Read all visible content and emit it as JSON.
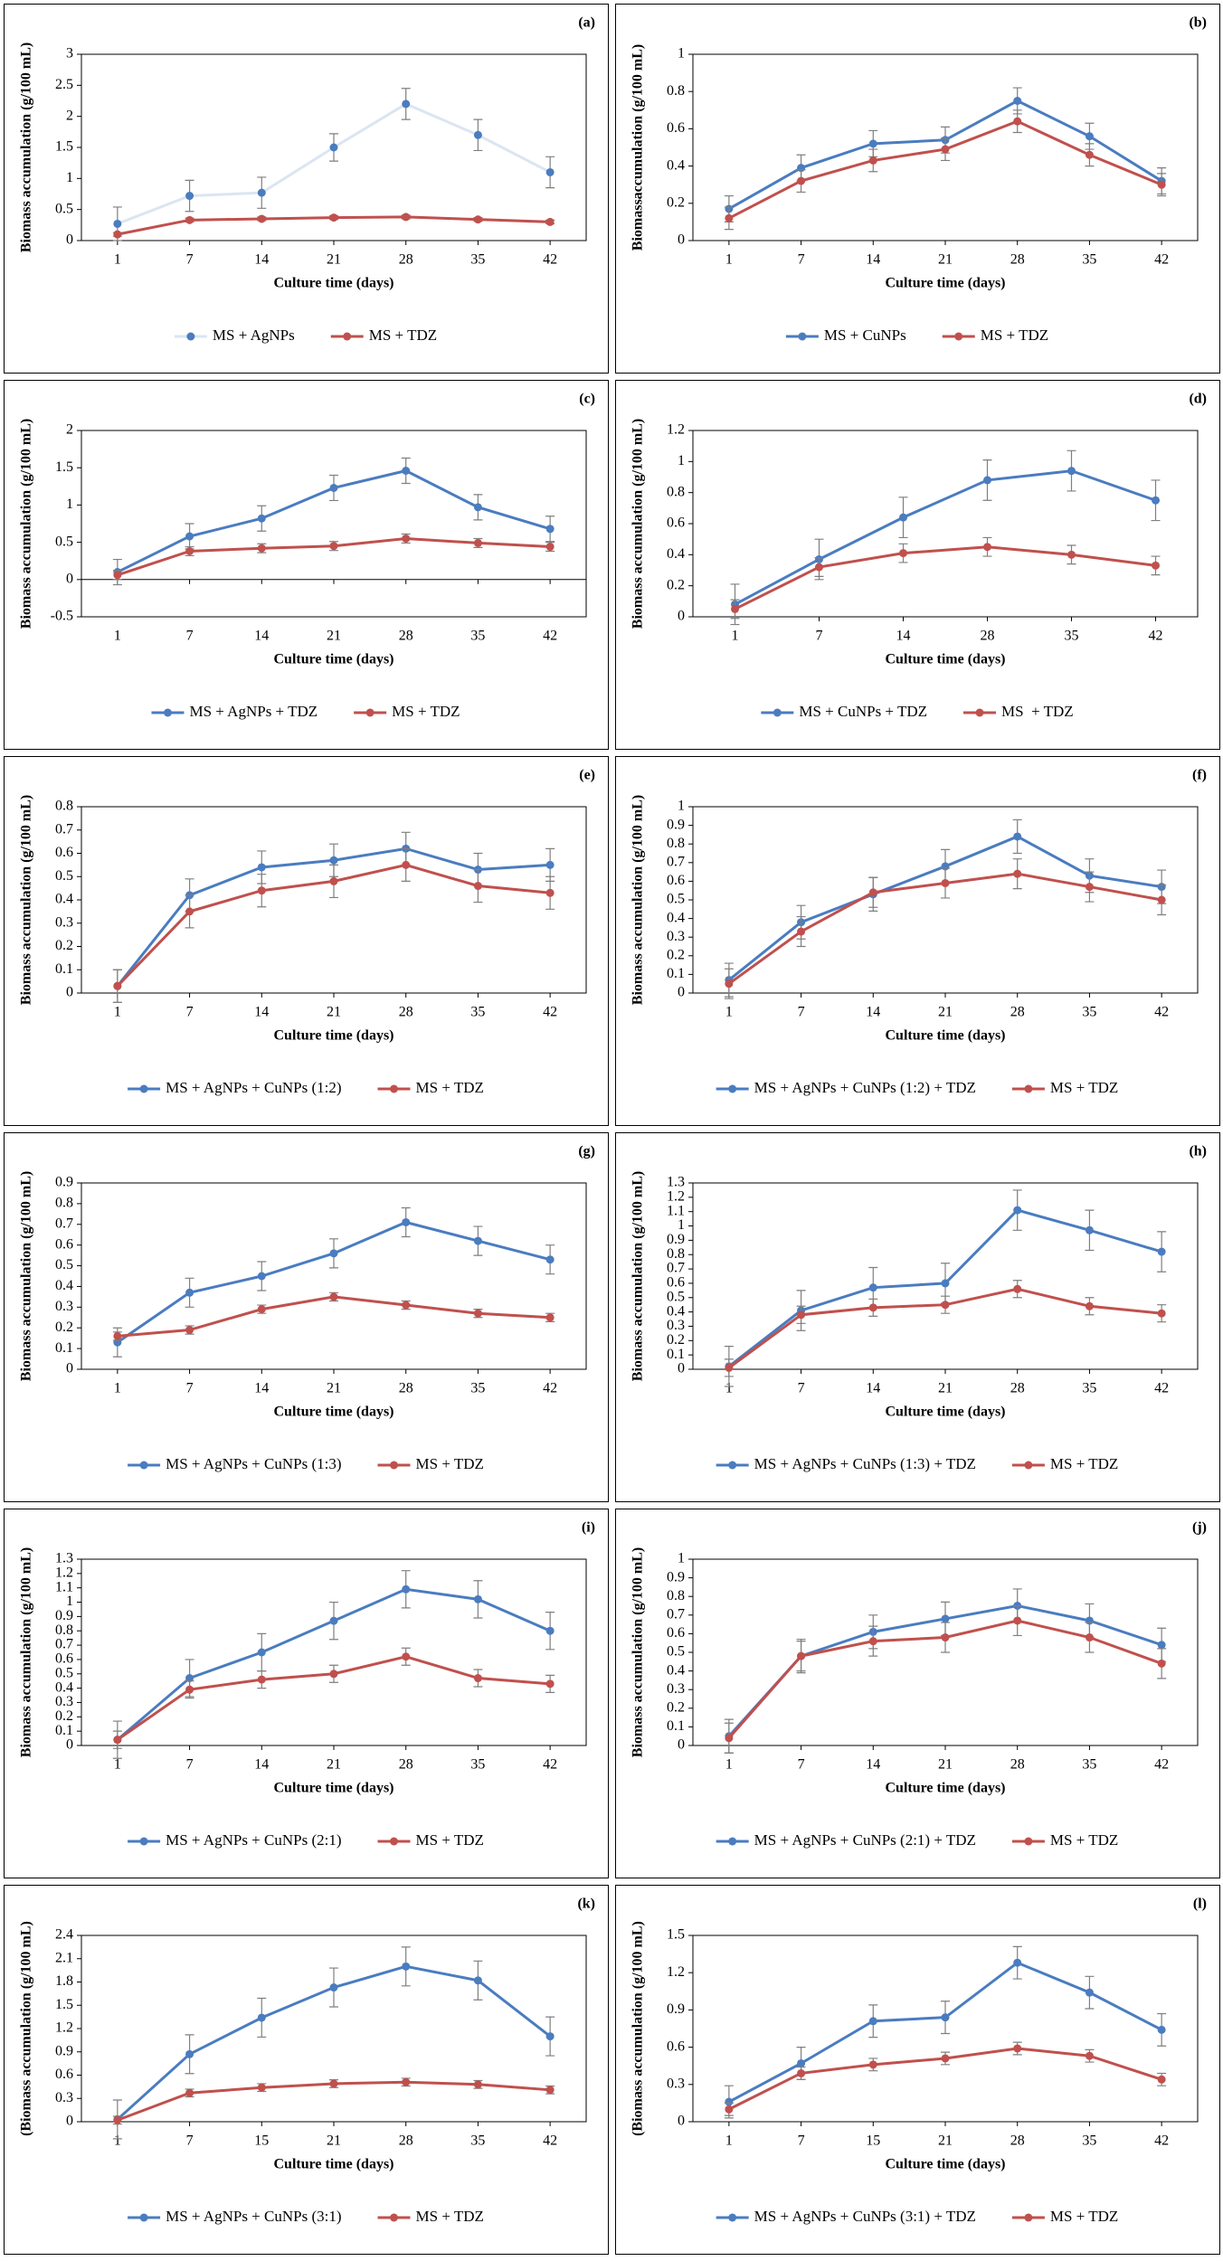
{
  "chart_data": [
    {
      "type": "line",
      "panel": "(a)",
      "x_label": "Culture time (days)",
      "y_label": "Biomass accumulation (g/100 mL)",
      "categories": [
        "1",
        "7",
        "14",
        "21",
        "28",
        "35",
        "42"
      ],
      "ylim": [
        0,
        3
      ],
      "yticks": [
        0,
        0.5,
        1,
        1.5,
        2,
        2.5,
        3
      ],
      "series": [
        {
          "name": "MS + AgNPs",
          "color": "#4a7cc0",
          "line_opacity": 0.2,
          "values": [
            0.27,
            0.72,
            0.77,
            1.5,
            2.2,
            1.7,
            1.1
          ],
          "errors": [
            0.27,
            0.25,
            0.25,
            0.22,
            0.25,
            0.25,
            0.25
          ]
        },
        {
          "name": "MS + TDZ",
          "color": "#c0504d",
          "values": [
            0.1,
            0.33,
            0.35,
            0.37,
            0.38,
            0.34,
            0.3
          ],
          "errors": [
            0.03,
            0.03,
            0.03,
            0.03,
            0.03,
            0.03,
            0.03
          ]
        }
      ]
    },
    {
      "type": "line",
      "panel": "(b)",
      "x_label": "Culture time (days)",
      "y_label": "Biomassaccumulation (g/100 mL)",
      "categories": [
        "1",
        "7",
        "14",
        "21",
        "28",
        "35",
        "42"
      ],
      "ylim": [
        0,
        1
      ],
      "yticks": [
        0,
        0.2,
        0.4,
        0.6,
        0.8,
        1
      ],
      "series": [
        {
          "name": "MS + CuNPs",
          "color": "#4a7cc0",
          "values": [
            0.17,
            0.39,
            0.52,
            0.54,
            0.75,
            0.56,
            0.32
          ],
          "errors": [
            0.07,
            0.07,
            0.07,
            0.07,
            0.07,
            0.07,
            0.07
          ]
        },
        {
          "name": "MS + TDZ",
          "color": "#c0504d",
          "values": [
            0.12,
            0.32,
            0.43,
            0.49,
            0.64,
            0.46,
            0.3
          ],
          "errors": [
            0.06,
            0.06,
            0.06,
            0.06,
            0.06,
            0.06,
            0.06
          ]
        }
      ]
    },
    {
      "type": "line",
      "panel": "(c)",
      "x_label": "Culture time (days)",
      "y_label": "Biomass accumulation (g/100 mL)",
      "categories": [
        "1",
        "7",
        "14",
        "21",
        "28",
        "35",
        "42"
      ],
      "ylim": [
        -0.5,
        2
      ],
      "yticks": [
        -0.5,
        0,
        0.5,
        1,
        1.5,
        2
      ],
      "series": [
        {
          "name": "MS + AgNPs + TDZ",
          "color": "#4a7cc0",
          "values": [
            0.1,
            0.58,
            0.82,
            1.23,
            1.46,
            0.97,
            0.68
          ],
          "errors": [
            0.17,
            0.17,
            0.17,
            0.17,
            0.17,
            0.17,
            0.17
          ]
        },
        {
          "name": "MS + TDZ",
          "color": "#c0504d",
          "values": [
            0.06,
            0.38,
            0.42,
            0.45,
            0.55,
            0.49,
            0.44
          ],
          "errors": [
            0.06,
            0.06,
            0.06,
            0.06,
            0.06,
            0.06,
            0.06
          ]
        }
      ]
    },
    {
      "type": "line",
      "panel": "(d)",
      "x_label": "Culture time (days)",
      "y_label": "Biomass accumulation (g/100 mL)",
      "categories": [
        "1",
        "7",
        "14",
        "28",
        "35",
        "42"
      ],
      "ylim": [
        0,
        1.2
      ],
      "yticks": [
        0,
        0.2,
        0.4,
        0.6,
        0.8,
        1,
        1.2
      ],
      "series": [
        {
          "name": "MS + CuNPs + TDZ",
          "color": "#4a7cc0",
          "values": [
            0.08,
            0.37,
            0.64,
            0.88,
            0.94,
            0.75
          ],
          "errors": [
            0.13,
            0.13,
            0.13,
            0.13,
            0.13,
            0.13
          ]
        },
        {
          "name": "MS  + TDZ",
          "color": "#c0504d",
          "values": [
            0.05,
            0.32,
            0.41,
            0.45,
            0.4,
            0.33
          ],
          "errors": [
            0.06,
            0.06,
            0.06,
            0.06,
            0.06,
            0.06
          ]
        }
      ]
    },
    {
      "type": "line",
      "panel": "(e)",
      "x_label": "Culture time (days)",
      "y_label": "Biomass accumulation (g/100 mL)",
      "categories": [
        "1",
        "7",
        "14",
        "21",
        "28",
        "35",
        "42"
      ],
      "ylim": [
        0,
        0.8
      ],
      "yticks": [
        0,
        0.1,
        0.2,
        0.3,
        0.4,
        0.5,
        0.6,
        0.7,
        0.8
      ],
      "series": [
        {
          "name": "MS + AgNPs + CuNPs (1:2)",
          "color": "#4a7cc0",
          "values": [
            0.03,
            0.42,
            0.54,
            0.57,
            0.62,
            0.53,
            0.55
          ],
          "errors": [
            0.07,
            0.07,
            0.07,
            0.07,
            0.07,
            0.07,
            0.07
          ]
        },
        {
          "name": "MS + TDZ",
          "color": "#c0504d",
          "values": [
            0.03,
            0.35,
            0.44,
            0.48,
            0.55,
            0.46,
            0.43
          ],
          "errors": [
            0.07,
            0.07,
            0.07,
            0.07,
            0.07,
            0.07,
            0.07
          ]
        }
      ]
    },
    {
      "type": "line",
      "panel": "(f)",
      "x_label": "Culture time (days)",
      "y_label": "Biomass accumulation (g/100 mL)",
      "categories": [
        "1",
        "7",
        "14",
        "21",
        "28",
        "35",
        "42"
      ],
      "ylim": [
        0,
        1
      ],
      "yticks": [
        0,
        0.1,
        0.2,
        0.3,
        0.4,
        0.5,
        0.6,
        0.7,
        0.8,
        0.9,
        1
      ],
      "series": [
        {
          "name": "MS + AgNPs + CuNPs (1:2) + TDZ",
          "color": "#4a7cc0",
          "values": [
            0.07,
            0.38,
            0.53,
            0.68,
            0.84,
            0.63,
            0.57
          ],
          "errors": [
            0.09,
            0.09,
            0.09,
            0.09,
            0.09,
            0.09,
            0.09
          ]
        },
        {
          "name": "MS + TDZ",
          "color": "#c0504d",
          "values": [
            0.05,
            0.33,
            0.54,
            0.59,
            0.64,
            0.57,
            0.5
          ],
          "errors": [
            0.08,
            0.08,
            0.08,
            0.08,
            0.08,
            0.08,
            0.08
          ]
        }
      ]
    },
    {
      "type": "line",
      "panel": "(g)",
      "x_label": "Culture time (days)",
      "y_label": "Biomass accumulation (g/100 mL)",
      "categories": [
        "1",
        "7",
        "14",
        "21",
        "28",
        "35",
        "42"
      ],
      "ylim": [
        0,
        0.9
      ],
      "yticks": [
        0,
        0.1,
        0.2,
        0.3,
        0.4,
        0.5,
        0.6,
        0.7,
        0.8,
        0.9
      ],
      "series": [
        {
          "name": "MS + AgNPs + CuNPs (1:3)",
          "color": "#4a7cc0",
          "values": [
            0.13,
            0.37,
            0.45,
            0.56,
            0.71,
            0.62,
            0.53
          ],
          "errors": [
            0.07,
            0.07,
            0.07,
            0.07,
            0.07,
            0.07,
            0.07
          ]
        },
        {
          "name": "MS + TDZ",
          "color": "#c0504d",
          "values": [
            0.16,
            0.19,
            0.29,
            0.35,
            0.31,
            0.27,
            0.25
          ],
          "errors": [
            0.02,
            0.02,
            0.02,
            0.02,
            0.02,
            0.02,
            0.02
          ]
        }
      ]
    },
    {
      "type": "line",
      "panel": "(h)",
      "x_label": "Culture time (days)",
      "y_label": "Biomass accumulation (g/100 mL)",
      "categories": [
        "1",
        "7",
        "14",
        "21",
        "28",
        "35",
        "42"
      ],
      "ylim": [
        0,
        1.3
      ],
      "yticks": [
        0,
        0.1,
        0.2,
        0.3,
        0.4,
        0.5,
        0.6,
        0.7,
        0.8,
        0.9,
        1,
        1.1,
        1.2,
        1.3
      ],
      "series": [
        {
          "name": "MS + AgNPs + CuNPs (1:3) + TDZ",
          "color": "#4a7cc0",
          "values": [
            0.02,
            0.41,
            0.57,
            0.6,
            1.11,
            0.97,
            0.82
          ],
          "errors": [
            0.14,
            0.14,
            0.14,
            0.14,
            0.14,
            0.14,
            0.14
          ]
        },
        {
          "name": "MS + TDZ",
          "color": "#c0504d",
          "values": [
            0.01,
            0.38,
            0.43,
            0.45,
            0.56,
            0.44,
            0.39
          ],
          "errors": [
            0.06,
            0.06,
            0.06,
            0.06,
            0.06,
            0.06,
            0.06
          ]
        }
      ]
    },
    {
      "type": "line",
      "panel": "(i)",
      "x_label": "Culture time (days)",
      "y_label": "Biomass accumulation (g/100 mL)",
      "categories": [
        "1",
        "7",
        "14",
        "21",
        "28",
        "35",
        "42"
      ],
      "ylim": [
        0,
        1.3
      ],
      "yticks": [
        0,
        0.1,
        0.2,
        0.3,
        0.4,
        0.5,
        0.6,
        0.7,
        0.8,
        0.9,
        1,
        1.1,
        1.2,
        1.3
      ],
      "series": [
        {
          "name": "MS + AgNPs + CuNPs (2:1)",
          "color": "#4a7cc0",
          "values": [
            0.04,
            0.47,
            0.65,
            0.87,
            1.09,
            1.02,
            0.8
          ],
          "errors": [
            0.13,
            0.13,
            0.13,
            0.13,
            0.13,
            0.13,
            0.13
          ]
        },
        {
          "name": "MS + TDZ",
          "color": "#c0504d",
          "values": [
            0.04,
            0.39,
            0.46,
            0.5,
            0.62,
            0.47,
            0.43
          ],
          "errors": [
            0.06,
            0.06,
            0.06,
            0.06,
            0.06,
            0.06,
            0.06
          ]
        }
      ]
    },
    {
      "type": "line",
      "panel": "(j)",
      "x_label": "Culture time (days)",
      "y_label": "Biomass accumulation (g/100 mL)",
      "categories": [
        "1",
        "7",
        "14",
        "21",
        "28",
        "35",
        "42"
      ],
      "ylim": [
        0,
        1
      ],
      "yticks": [
        0,
        0.1,
        0.2,
        0.3,
        0.4,
        0.5,
        0.6,
        0.7,
        0.8,
        0.9,
        1
      ],
      "series": [
        {
          "name": "MS + AgNPs + CuNPs (2:1) + TDZ",
          "color": "#4a7cc0",
          "values": [
            0.05,
            0.48,
            0.61,
            0.68,
            0.75,
            0.67,
            0.54
          ],
          "errors": [
            0.09,
            0.09,
            0.09,
            0.09,
            0.09,
            0.09,
            0.09
          ]
        },
        {
          "name": "MS + TDZ",
          "color": "#c0504d",
          "values": [
            0.04,
            0.48,
            0.56,
            0.58,
            0.67,
            0.58,
            0.44
          ],
          "errors": [
            0.08,
            0.08,
            0.08,
            0.08,
            0.08,
            0.08,
            0.08
          ]
        }
      ]
    },
    {
      "type": "line",
      "panel": "(k)",
      "x_label": "Culture time (days)",
      "y_label": "(Biomass accumulation (g/100 mL)",
      "categories": [
        "1",
        "7",
        "15",
        "21",
        "28",
        "35",
        "42"
      ],
      "ylim": [
        0,
        2.4
      ],
      "yticks": [
        0,
        0.3,
        0.6,
        0.9,
        1.2,
        1.5,
        1.8,
        2.1,
        2.4
      ],
      "series": [
        {
          "name": "MS + AgNPs + CuNPs (3:1)",
          "color": "#4a7cc0",
          "values": [
            0.03,
            0.87,
            1.34,
            1.73,
            2.0,
            1.82,
            1.1
          ],
          "errors": [
            0.25,
            0.25,
            0.25,
            0.25,
            0.25,
            0.25,
            0.25
          ]
        },
        {
          "name": "MS + TDZ",
          "color": "#c0504d",
          "values": [
            0.02,
            0.37,
            0.44,
            0.49,
            0.51,
            0.48,
            0.41
          ],
          "errors": [
            0.05,
            0.05,
            0.05,
            0.05,
            0.05,
            0.05,
            0.05
          ]
        }
      ]
    },
    {
      "type": "line",
      "panel": "(l)",
      "x_label": "Culture time (days)",
      "y_label": "(Biomass accumulation (g/100 mL)",
      "categories": [
        "1",
        "7",
        "15",
        "21",
        "28",
        "35",
        "42"
      ],
      "ylim": [
        0,
        1.5
      ],
      "yticks": [
        0,
        0.3,
        0.6,
        0.9,
        1.2,
        1.5
      ],
      "series": [
        {
          "name": "MS + AgNPs + CuNPs (3:1) + TDZ",
          "color": "#4a7cc0",
          "values": [
            0.16,
            0.47,
            0.81,
            0.84,
            1.28,
            1.04,
            0.74
          ],
          "errors": [
            0.13,
            0.13,
            0.13,
            0.13,
            0.13,
            0.13,
            0.13
          ]
        },
        {
          "name": "MS + TDZ",
          "color": "#c0504d",
          "values": [
            0.1,
            0.39,
            0.46,
            0.51,
            0.59,
            0.53,
            0.34
          ],
          "errors": [
            0.05,
            0.05,
            0.05,
            0.05,
            0.05,
            0.05,
            0.05
          ]
        }
      ]
    }
  ]
}
